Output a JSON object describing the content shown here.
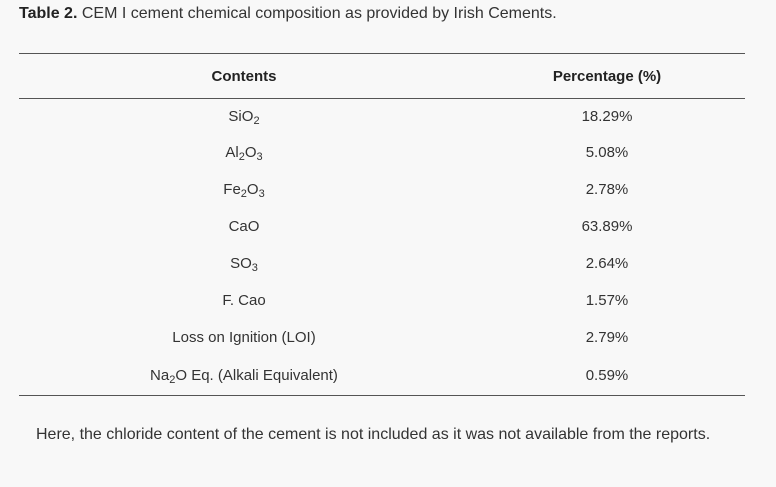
{
  "caption": {
    "label": "Table 2.",
    "text": " CEM I cement chemical composition as provided by Irish Cements."
  },
  "table": {
    "headers": [
      "Contents",
      "Percentage (%)"
    ],
    "rows": [
      {
        "content": {
          "parts": [
            "SiO",
            "2",
            ""
          ]
        },
        "percentage": "18.29%"
      },
      {
        "content": {
          "parts": [
            "Al",
            "2",
            "O",
            "3",
            ""
          ]
        },
        "percentage": "5.08%"
      },
      {
        "content": {
          "parts": [
            "Fe",
            "2",
            "O",
            "3",
            ""
          ]
        },
        "percentage": "2.78%"
      },
      {
        "content": {
          "parts": [
            "CaO"
          ]
        },
        "percentage": "63.89%"
      },
      {
        "content": {
          "parts": [
            "SO",
            "3",
            ""
          ]
        },
        "percentage": "2.64%"
      },
      {
        "content": {
          "parts": [
            "F. Cao"
          ]
        },
        "percentage": "1.57%"
      },
      {
        "content": {
          "parts": [
            "Loss on Ignition (LOI)"
          ]
        },
        "percentage": "2.79%"
      },
      {
        "content": {
          "parts": [
            "Na",
            "2",
            "O Eq. (Alkali Equivalent)"
          ]
        },
        "percentage": "0.59%"
      }
    ]
  },
  "note": "Here, the chloride content of the cement is not included as it was not available from the reports."
}
